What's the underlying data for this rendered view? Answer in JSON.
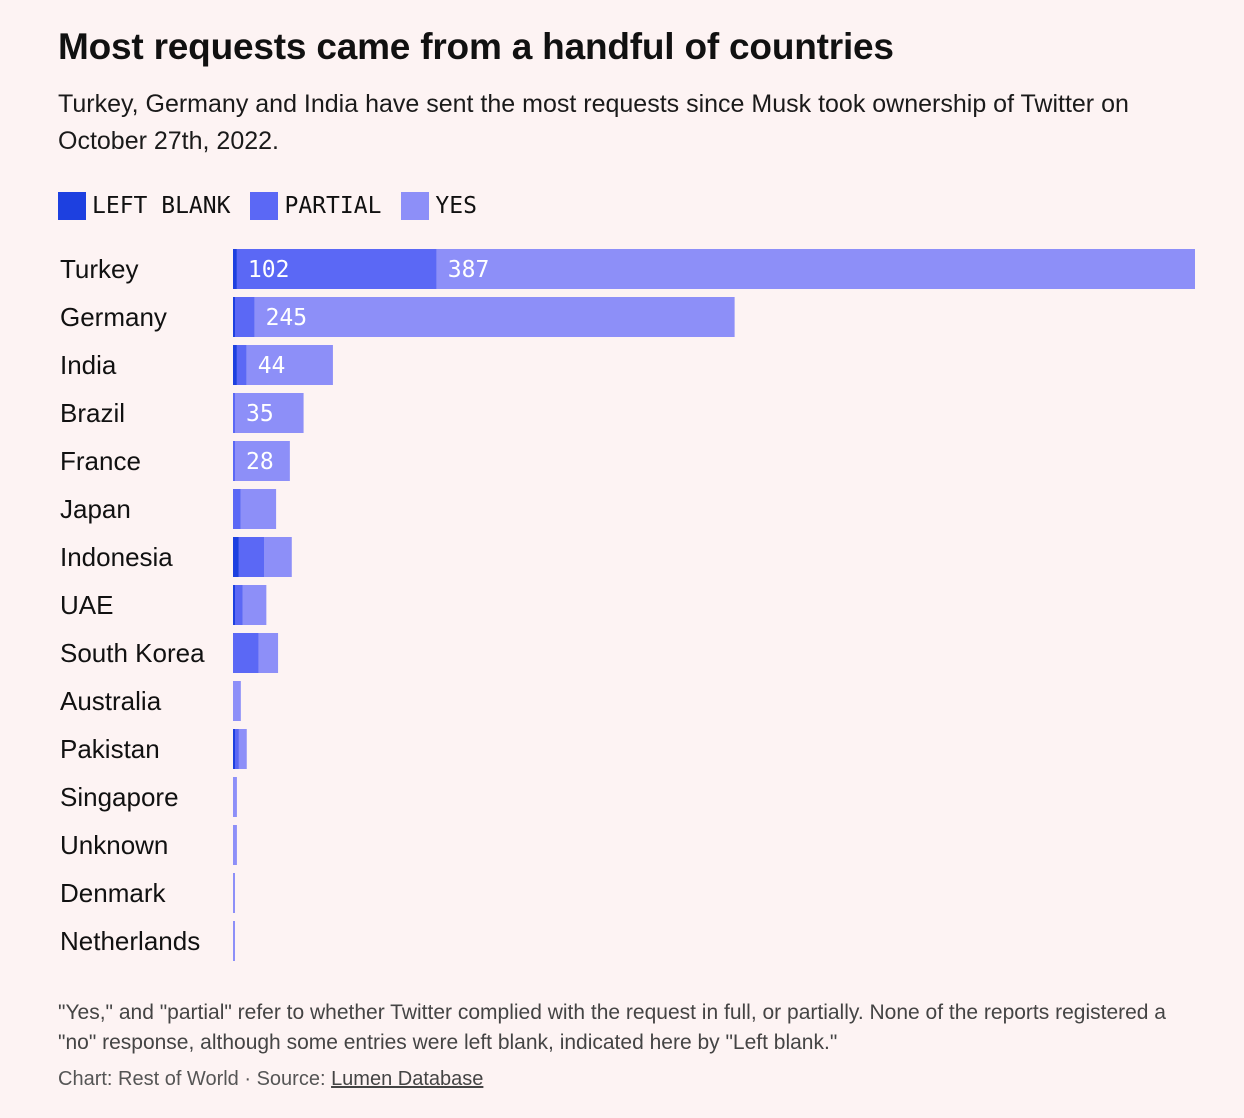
{
  "title": "Most requests came from a handful of countries",
  "subtitle": "Turkey, Germany and India have sent the most requests since Musk took ownership of Twitter on October 27th, 2022.",
  "note": "\"Yes,\" and \"partial\" refer to whether Twitter complied with the request in full, or partially. None of the reports registered a \"no\" response, although some entries were left blank, indicated here by \"Left blank.\"",
  "credit_prefix": "Chart: Rest of World · Source: ",
  "source_link": "Lumen Database",
  "chart_data": {
    "type": "bar",
    "orientation": "horizontal",
    "stacked": true,
    "grid": false,
    "legend_position": "top-left",
    "categories": [
      "Turkey",
      "Germany",
      "India",
      "Brazil",
      "France",
      "Japan",
      "Indonesia",
      "UAE",
      "South Korea",
      "Australia",
      "Pakistan",
      "Singapore",
      "Unknown",
      "Denmark",
      "Netherlands"
    ],
    "series": [
      {
        "name": "LEFT BLANK",
        "color": "#1d40e0",
        "values": [
          2,
          1,
          2,
          0,
          0,
          0,
          3,
          1,
          0,
          0,
          1,
          0,
          0,
          0,
          0
        ]
      },
      {
        "name": "PARTIAL",
        "color": "#5b68f5",
        "values": [
          102,
          10,
          5,
          1,
          1,
          4,
          13,
          4,
          13,
          0,
          2,
          0,
          0,
          0,
          0
        ]
      },
      {
        "name": "YES",
        "color": "#8d8ff8",
        "values": [
          387,
          245,
          44,
          35,
          28,
          18,
          14,
          12,
          10,
          4,
          4,
          2,
          2,
          1,
          1
        ]
      }
    ],
    "data_labels": [
      [
        "",
        "102",
        "387"
      ],
      [
        "",
        "",
        "245"
      ],
      [
        "",
        "",
        "44"
      ],
      [
        "",
        "",
        "35"
      ],
      [
        "",
        "",
        "28"
      ],
      [
        "",
        "",
        ""
      ],
      [
        "",
        "",
        ""
      ],
      [
        "",
        "",
        ""
      ],
      [
        "",
        "",
        ""
      ],
      [
        "",
        "",
        ""
      ],
      [
        "",
        "",
        ""
      ],
      [
        "",
        "",
        ""
      ],
      [
        "",
        "",
        ""
      ],
      [
        "",
        "",
        ""
      ],
      [
        "",
        "",
        ""
      ]
    ]
  }
}
